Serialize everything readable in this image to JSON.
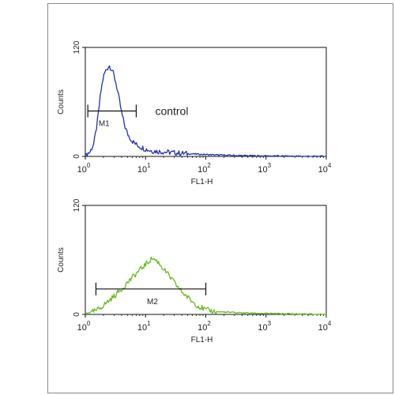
{
  "chart_data": [
    {
      "type": "histogram",
      "xscale": "log",
      "xlim": [
        1,
        10000
      ],
      "ylim": [
        0,
        120
      ],
      "xlabel": "FL1-H",
      "ylabel": "Counts",
      "x_tick_labels": [
        {
          "base": "10",
          "exp": "0"
        },
        {
          "base": "10",
          "exp": "1"
        },
        {
          "base": "10",
          "exp": "2"
        },
        {
          "base": "10",
          "exp": "3"
        },
        {
          "base": "10",
          "exp": "4"
        }
      ],
      "y_tick_labels": [
        "0",
        "120"
      ],
      "annotation": "control",
      "series": [
        {
          "color": "#2233aa",
          "points": [
            [
              1.0,
              2
            ],
            [
              1.2,
              5
            ],
            [
              1.4,
              15
            ],
            [
              1.6,
              40
            ],
            [
              1.8,
              70
            ],
            [
              2.0,
              88
            ],
            [
              2.2,
              95
            ],
            [
              2.5,
              100
            ],
            [
              2.8,
              95
            ],
            [
              3.2,
              82
            ],
            [
              3.6,
              65
            ],
            [
              4.0,
              48
            ],
            [
              4.5,
              34
            ],
            [
              5.0,
              25
            ],
            [
              6.0,
              17
            ],
            [
              7.0,
              13
            ],
            [
              8.0,
              11
            ],
            [
              10,
              8
            ],
            [
              13,
              6
            ],
            [
              20,
              5
            ],
            [
              30,
              4
            ],
            [
              50,
              3
            ],
            [
              100,
              2
            ],
            [
              300,
              1
            ],
            [
              1000,
              0.5
            ],
            [
              10000,
              0
            ]
          ]
        }
      ],
      "gate": {
        "label": "M1",
        "x_from": 1.1,
        "x_to": 7,
        "y": 50
      }
    },
    {
      "type": "histogram",
      "xscale": "log",
      "xlim": [
        1,
        10000
      ],
      "ylim": [
        0,
        120
      ],
      "xlabel": "FL1-H",
      "ylabel": "Counts",
      "x_tick_labels": [
        {
          "base": "10",
          "exp": "0"
        },
        {
          "base": "10",
          "exp": "1"
        },
        {
          "base": "10",
          "exp": "2"
        },
        {
          "base": "10",
          "exp": "3"
        },
        {
          "base": "10",
          "exp": "4"
        }
      ],
      "y_tick_labels": [
        "0",
        "120"
      ],
      "series": [
        {
          "color": "#66bb22",
          "points": [
            [
              1.0,
              1
            ],
            [
              1.5,
              4
            ],
            [
              2.0,
              10
            ],
            [
              3.0,
              20
            ],
            [
              4.0,
              28
            ],
            [
              5.0,
              35
            ],
            [
              7.0,
              45
            ],
            [
              10,
              55
            ],
            [
              13,
              62
            ],
            [
              16,
              58
            ],
            [
              20,
              50
            ],
            [
              30,
              35
            ],
            [
              40,
              25
            ],
            [
              60,
              14
            ],
            [
              80,
              8
            ],
            [
              100,
              5
            ],
            [
              150,
              3
            ],
            [
              300,
              2
            ],
            [
              1000,
              1
            ],
            [
              10000,
              0
            ]
          ]
        }
      ],
      "gate": {
        "label": "M2",
        "x_from": 1.5,
        "x_to": 100,
        "y": 28
      }
    }
  ]
}
